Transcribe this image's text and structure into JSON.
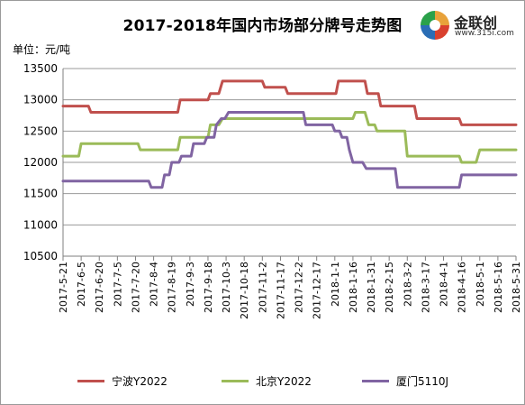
{
  "chart_data": {
    "type": "line",
    "title": "2017-2018年国内市场部分牌号走势图",
    "ylabel": "单位：元/吨",
    "ylim": [
      10500,
      13500
    ],
    "yticks": [
      10500,
      11000,
      11500,
      12000,
      12500,
      13000,
      13500
    ],
    "x_tick_labels": [
      "2017-5-21",
      "2017-6-5",
      "2017-6-20",
      "2017-7-5",
      "2017-7-20",
      "2017-8-4",
      "2017-8-19",
      "2017-9-3",
      "2017-9-18",
      "2017-10-3",
      "2017-10-18",
      "2017-11-2",
      "2017-11-17",
      "2017-12-2",
      "2017-12-17",
      "2018-1-1",
      "2018-1-16",
      "2018-1-31",
      "2018-2-15",
      "2018-3-2",
      "2018-3-17",
      "2018-4-1",
      "2018-4-16",
      "2018-5-1",
      "2018-5-16",
      "2018-5-31"
    ],
    "legend_position": "bottom",
    "grid": "horizontal",
    "series": [
      {
        "name": "宁波Y2022",
        "color": "#c0504d",
        "points": [
          [
            "2017-5-21",
            12900
          ],
          [
            "2017-6-11",
            12900
          ],
          [
            "2017-6-13",
            12800
          ],
          [
            "2017-8-24",
            12800
          ],
          [
            "2017-8-26",
            13000
          ],
          [
            "2017-9-18",
            13000
          ],
          [
            "2017-9-20",
            13100
          ],
          [
            "2017-9-27",
            13100
          ],
          [
            "2017-9-30",
            13300
          ],
          [
            "2017-11-2",
            13300
          ],
          [
            "2017-11-4",
            13200
          ],
          [
            "2017-11-21",
            13200
          ],
          [
            "2017-11-23",
            13100
          ],
          [
            "2018-1-2",
            13100
          ],
          [
            "2018-1-4",
            13300
          ],
          [
            "2018-1-26",
            13300
          ],
          [
            "2018-1-28",
            13100
          ],
          [
            "2018-2-6",
            13100
          ],
          [
            "2018-2-8",
            12900
          ],
          [
            "2018-3-8",
            12900
          ],
          [
            "2018-3-10",
            12700
          ],
          [
            "2018-4-14",
            12700
          ],
          [
            "2018-4-16",
            12600
          ],
          [
            "2018-5-31",
            12600
          ]
        ]
      },
      {
        "name": "北京Y2022",
        "color": "#9bbb59",
        "points": [
          [
            "2017-5-21",
            12100
          ],
          [
            "2017-6-3",
            12100
          ],
          [
            "2017-6-5",
            12300
          ],
          [
            "2017-7-22",
            12300
          ],
          [
            "2017-7-24",
            12200
          ],
          [
            "2017-8-24",
            12200
          ],
          [
            "2017-8-26",
            12400
          ],
          [
            "2017-9-18",
            12400
          ],
          [
            "2017-9-20",
            12600
          ],
          [
            "2017-9-27",
            12600
          ],
          [
            "2017-9-30",
            12700
          ],
          [
            "2018-1-16",
            12700
          ],
          [
            "2018-1-18",
            12800
          ],
          [
            "2018-1-26",
            12800
          ],
          [
            "2018-1-29",
            12600
          ],
          [
            "2018-2-3",
            12600
          ],
          [
            "2018-2-5",
            12500
          ],
          [
            "2018-2-28",
            12500
          ],
          [
            "2018-3-2",
            12100
          ],
          [
            "2018-4-14",
            12100
          ],
          [
            "2018-4-16",
            12000
          ],
          [
            "2018-4-28",
            12000
          ],
          [
            "2018-5-1",
            12200
          ],
          [
            "2018-5-31",
            12200
          ]
        ]
      },
      {
        "name": "厦门5110J",
        "color": "#8064a2",
        "points": [
          [
            "2017-5-21",
            11700
          ],
          [
            "2017-7-31",
            11700
          ],
          [
            "2017-8-2",
            11600
          ],
          [
            "2017-8-11",
            11600
          ],
          [
            "2017-8-13",
            11800
          ],
          [
            "2017-8-17",
            11800
          ],
          [
            "2017-8-19",
            12000
          ],
          [
            "2017-8-25",
            12000
          ],
          [
            "2017-8-27",
            12100
          ],
          [
            "2017-9-4",
            12100
          ],
          [
            "2017-9-6",
            12300
          ],
          [
            "2017-9-15",
            12300
          ],
          [
            "2017-9-17",
            12400
          ],
          [
            "2017-9-23",
            12400
          ],
          [
            "2017-9-25",
            12600
          ],
          [
            "2017-9-29",
            12700
          ],
          [
            "2017-10-2",
            12700
          ],
          [
            "2017-10-5",
            12800
          ],
          [
            "2017-12-6",
            12800
          ],
          [
            "2017-12-8",
            12600
          ],
          [
            "2017-12-30",
            12600
          ],
          [
            "2018-1-1",
            12500
          ],
          [
            "2018-1-5",
            12500
          ],
          [
            "2018-1-7",
            12400
          ],
          [
            "2018-1-11",
            12400
          ],
          [
            "2018-1-13",
            12200
          ],
          [
            "2018-1-16",
            12000
          ],
          [
            "2018-1-24",
            12000
          ],
          [
            "2018-1-27",
            11900
          ],
          [
            "2018-2-20",
            11900
          ],
          [
            "2018-2-22",
            11600
          ],
          [
            "2018-4-14",
            11600
          ],
          [
            "2018-4-16",
            11800
          ],
          [
            "2018-5-31",
            11800
          ]
        ]
      }
    ]
  },
  "logo": {
    "name": "金联创",
    "url": "www.315i.com"
  }
}
